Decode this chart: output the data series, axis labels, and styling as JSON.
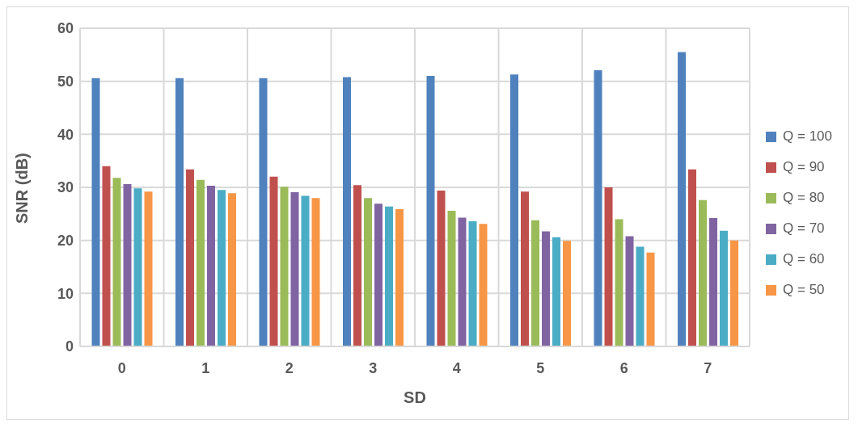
{
  "chart_data": {
    "type": "bar",
    "xlabel": "SD",
    "ylabel": "SNR (dB)",
    "categories": [
      "0",
      "1",
      "2",
      "3",
      "4",
      "5",
      "6",
      "7"
    ],
    "series": [
      {
        "name": "Q = 100",
        "color": "#4f81bd",
        "values": [
          50.6,
          50.6,
          50.6,
          50.8,
          51.0,
          51.3,
          52.1,
          55.5
        ]
      },
      {
        "name": "Q = 90",
        "color": "#c0504d",
        "values": [
          34.0,
          33.4,
          32.0,
          30.4,
          29.4,
          29.2,
          30.0,
          33.4
        ]
      },
      {
        "name": "Q = 80",
        "color": "#9bbb59",
        "values": [
          31.8,
          31.4,
          30.1,
          28.0,
          25.6,
          23.8,
          24.0,
          27.6
        ]
      },
      {
        "name": "Q = 70",
        "color": "#8064a2",
        "values": [
          30.6,
          30.3,
          29.1,
          26.9,
          24.3,
          21.7,
          20.8,
          24.2
        ]
      },
      {
        "name": "Q = 60",
        "color": "#4bacc6",
        "values": [
          29.8,
          29.5,
          28.4,
          26.4,
          23.6,
          20.6,
          18.8,
          21.8
        ]
      },
      {
        "name": "Q = 50",
        "color": "#f79646",
        "values": [
          29.2,
          28.9,
          28.0,
          25.9,
          23.1,
          19.9,
          17.7,
          20.0
        ]
      }
    ],
    "ylim": [
      0,
      60
    ],
    "yticks": [
      0,
      10,
      20,
      30,
      40,
      50,
      60
    ],
    "grid": true,
    "legend": "right"
  }
}
